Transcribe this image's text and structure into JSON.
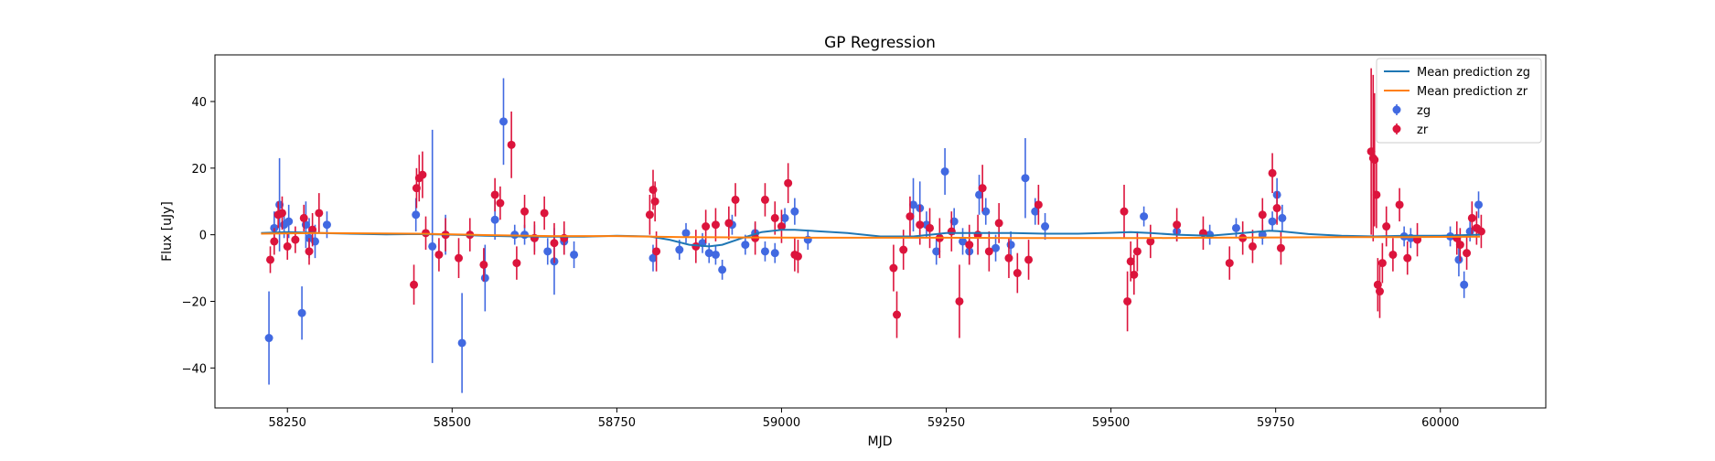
{
  "chart_data": {
    "type": "scatter",
    "title": "GP Regression",
    "xlabel": "MJD",
    "ylabel": "Flux [uJy]",
    "xlim": [
      58140,
      60160
    ],
    "ylim": [
      -52,
      54
    ],
    "xticks": [
      58250,
      58500,
      58750,
      59000,
      59250,
      59500,
      59750,
      60000
    ],
    "yticks": [
      -40,
      -20,
      0,
      20,
      40
    ],
    "grid": false,
    "legend_position": "top-right",
    "legend": [
      "Mean prediction zg",
      "Mean prediction zr",
      "zg",
      "zr"
    ],
    "series": [
      {
        "name": "Mean prediction zg",
        "kind": "line",
        "color": "#1f77b4",
        "x": [
          58210,
          58250,
          58300,
          58400,
          58450,
          58500,
          58550,
          58600,
          58650,
          58700,
          58750,
          58800,
          58830,
          58860,
          58890,
          58910,
          58940,
          58970,
          59000,
          59020,
          59100,
          59150,
          59200,
          59250,
          59300,
          59350,
          59400,
          59450,
          59500,
          59530,
          59560,
          59600,
          59650,
          59700,
          59740,
          59760,
          59800,
          59850,
          59900,
          59950,
          60000,
          60060
        ],
        "y": [
          0.5,
          0.8,
          0.5,
          0.1,
          0.2,
          0.0,
          -0.3,
          -0.5,
          -0.6,
          -0.6,
          -0.3,
          -0.5,
          -1.5,
          -3.0,
          -3.5,
          -3.0,
          -1.0,
          0.8,
          1.5,
          1.5,
          0.5,
          -0.5,
          -0.5,
          0.5,
          0.5,
          0.5,
          0.3,
          0.3,
          0.6,
          0.8,
          0.5,
          0.0,
          -0.3,
          0.5,
          1.2,
          1.0,
          0.2,
          -0.3,
          -0.5,
          -0.3,
          -0.3,
          0.0
        ]
      },
      {
        "name": "Mean prediction zr",
        "kind": "line",
        "color": "#ff7f0e",
        "x": [
          58210,
          58300,
          58450,
          58550,
          58650,
          58750,
          58850,
          58950,
          59050,
          59150,
          59250,
          59350,
          59450,
          59550,
          59650,
          59750,
          59850,
          59950,
          60060
        ],
        "y": [
          0.3,
          0.5,
          0.3,
          -0.1,
          -0.4,
          -0.4,
          -0.7,
          -0.8,
          -0.9,
          -0.9,
          -0.9,
          -1.0,
          -1.0,
          -1.0,
          -0.9,
          -0.8,
          -0.7,
          -0.7,
          -0.6
        ]
      },
      {
        "name": "zg",
        "kind": "errorbar",
        "color": "#4169e1",
        "points": [
          [
            58222,
            -31,
            14
          ],
          [
            58230,
            2,
            5
          ],
          [
            58238,
            9,
            14
          ],
          [
            58245,
            3,
            4
          ],
          [
            58252,
            4,
            5
          ],
          [
            58272,
            -23.5,
            8
          ],
          [
            58278,
            3,
            7
          ],
          [
            58283,
            -1,
            6
          ],
          [
            58292,
            -2,
            5
          ],
          [
            58310,
            3,
            4
          ],
          [
            58445,
            6,
            5
          ],
          [
            58470,
            -3.5,
            35
          ],
          [
            58490,
            0,
            6
          ],
          [
            58515,
            -32.5,
            15
          ],
          [
            58550,
            -13,
            10
          ],
          [
            58565,
            4.5,
            6
          ],
          [
            58578,
            34,
            13
          ],
          [
            58595,
            0,
            3
          ],
          [
            58610,
            0,
            3
          ],
          [
            58625,
            -1,
            4
          ],
          [
            58645,
            -5,
            4
          ],
          [
            58655,
            -8,
            10
          ],
          [
            58670,
            -2,
            4
          ],
          [
            58685,
            -6,
            4
          ],
          [
            58805,
            -7,
            4
          ],
          [
            58845,
            -4.5,
            3
          ],
          [
            58855,
            0.5,
            3
          ],
          [
            58880,
            -2.5,
            3
          ],
          [
            58890,
            -5.5,
            3
          ],
          [
            58900,
            -6,
            3
          ],
          [
            58910,
            -10.5,
            3
          ],
          [
            58925,
            3,
            3
          ],
          [
            58945,
            -3,
            3
          ],
          [
            58960,
            0.5,
            3
          ],
          [
            58975,
            -5,
            3
          ],
          [
            58990,
            -5.5,
            3
          ],
          [
            59005,
            5,
            3
          ],
          [
            59020,
            7,
            4
          ],
          [
            59040,
            -1.5,
            3
          ],
          [
            59200,
            9,
            8
          ],
          [
            59210,
            8,
            8
          ],
          [
            59220,
            3,
            4
          ],
          [
            59235,
            -5,
            4
          ],
          [
            59248,
            19,
            7
          ],
          [
            59262,
            4,
            4
          ],
          [
            59275,
            -2,
            4
          ],
          [
            59285,
            -5,
            4
          ],
          [
            59300,
            12,
            6
          ],
          [
            59310,
            7,
            4
          ],
          [
            59325,
            -4,
            4
          ],
          [
            59348,
            -3,
            4
          ],
          [
            59370,
            17,
            12
          ],
          [
            59385,
            7,
            4
          ],
          [
            59400,
            2.5,
            4
          ],
          [
            59550,
            5.5,
            3
          ],
          [
            59600,
            1,
            3
          ],
          [
            59650,
            0,
            3
          ],
          [
            59690,
            2,
            3
          ],
          [
            59730,
            0,
            3
          ],
          [
            59745,
            4,
            3
          ],
          [
            59752,
            12,
            5
          ],
          [
            59760,
            5,
            4
          ],
          [
            59945,
            -0.5,
            3
          ],
          [
            59955,
            -1,
            3
          ],
          [
            60015,
            -0.5,
            3
          ],
          [
            60028,
            -7.5,
            5
          ],
          [
            60036,
            -15,
            4
          ],
          [
            60045,
            1,
            3
          ],
          [
            60058,
            9,
            4
          ]
        ]
      },
      {
        "name": "zr",
        "kind": "errorbar",
        "color": "#dc143c",
        "points": [
          [
            58224,
            -7.5,
            4
          ],
          [
            58230,
            -2,
            4
          ],
          [
            58236,
            6,
            4
          ],
          [
            58242,
            6.5,
            5
          ],
          [
            58250,
            -3.5,
            4
          ],
          [
            58262,
            -1.5,
            4
          ],
          [
            58275,
            5,
            4
          ],
          [
            58283,
            -5,
            4
          ],
          [
            58288,
            1.5,
            5
          ],
          [
            58298,
            6.5,
            6
          ],
          [
            58442,
            -15,
            6
          ],
          [
            58446,
            14,
            6
          ],
          [
            58450,
            17,
            7
          ],
          [
            58455,
            18,
            7
          ],
          [
            58460,
            0.5,
            5
          ],
          [
            58480,
            -6,
            5
          ],
          [
            58490,
            0,
            5
          ],
          [
            58510,
            -7,
            6
          ],
          [
            58527,
            0,
            5
          ],
          [
            58548,
            -9,
            5
          ],
          [
            58565,
            12,
            5
          ],
          [
            58573,
            9.5,
            5
          ],
          [
            58590,
            27,
            10
          ],
          [
            58598,
            -8.5,
            5
          ],
          [
            58610,
            7,
            5
          ],
          [
            58625,
            -1,
            5
          ],
          [
            58640,
            6.5,
            5
          ],
          [
            58655,
            -2.5,
            6
          ],
          [
            58670,
            -1,
            5
          ],
          [
            58800,
            6,
            6
          ],
          [
            58805,
            13.5,
            6
          ],
          [
            58808,
            10,
            6
          ],
          [
            58810,
            -5,
            6
          ],
          [
            58870,
            -3.5,
            5
          ],
          [
            58885,
            2.5,
            5
          ],
          [
            58900,
            3,
            5
          ],
          [
            58920,
            3.5,
            5
          ],
          [
            58930,
            10.5,
            5
          ],
          [
            58960,
            -1,
            5
          ],
          [
            58975,
            10.5,
            5
          ],
          [
            58990,
            5,
            5
          ],
          [
            59000,
            2.5,
            5
          ],
          [
            59010,
            15.5,
            6
          ],
          [
            59020,
            -6,
            5
          ],
          [
            59025,
            -6.5,
            5
          ],
          [
            59170,
            -10,
            7
          ],
          [
            59175,
            -24,
            7
          ],
          [
            59185,
            -4.5,
            6
          ],
          [
            59195,
            5.5,
            6
          ],
          [
            59210,
            3,
            6
          ],
          [
            59225,
            2,
            6
          ],
          [
            59240,
            -1,
            6
          ],
          [
            59258,
            1,
            6
          ],
          [
            59270,
            -20,
            11
          ],
          [
            59285,
            -3,
            6
          ],
          [
            59298,
            0,
            6
          ],
          [
            59305,
            14,
            7
          ],
          [
            59315,
            -5,
            6
          ],
          [
            59330,
            3.5,
            6
          ],
          [
            59345,
            -7,
            6
          ],
          [
            59358,
            -11.5,
            6
          ],
          [
            59375,
            -7.5,
            6
          ],
          [
            59390,
            9,
            6
          ],
          [
            59520,
            7,
            8
          ],
          [
            59525,
            -20,
            9
          ],
          [
            59530,
            -8,
            6
          ],
          [
            59535,
            -12,
            6
          ],
          [
            59540,
            -5,
            6
          ],
          [
            59560,
            -2,
            5
          ],
          [
            59600,
            3,
            5
          ],
          [
            59640,
            0.5,
            5
          ],
          [
            59680,
            -8.5,
            5
          ],
          [
            59700,
            -1,
            5
          ],
          [
            59715,
            -3.5,
            5
          ],
          [
            59730,
            6,
            5
          ],
          [
            59745,
            18.5,
            6
          ],
          [
            59752,
            8,
            5
          ],
          [
            59758,
            -4,
            5
          ],
          [
            59895,
            25,
            25
          ],
          [
            59898,
            23,
            25
          ],
          [
            59900,
            22.5,
            20
          ],
          [
            59903,
            12,
            10
          ],
          [
            59905,
            -15,
            8
          ],
          [
            59908,
            -17,
            8
          ],
          [
            59912,
            -8.5,
            6
          ],
          [
            59918,
            2.5,
            6
          ],
          [
            59928,
            -6,
            5
          ],
          [
            59938,
            9,
            5
          ],
          [
            59950,
            -7,
            5
          ],
          [
            59965,
            -1.5,
            5
          ],
          [
            60025,
            -1,
            5
          ],
          [
            60030,
            -3,
            5
          ],
          [
            60040,
            -5.5,
            5
          ],
          [
            60048,
            5,
            5
          ],
          [
            60055,
            2,
            5
          ],
          [
            60062,
            1,
            5
          ]
        ]
      }
    ]
  }
}
